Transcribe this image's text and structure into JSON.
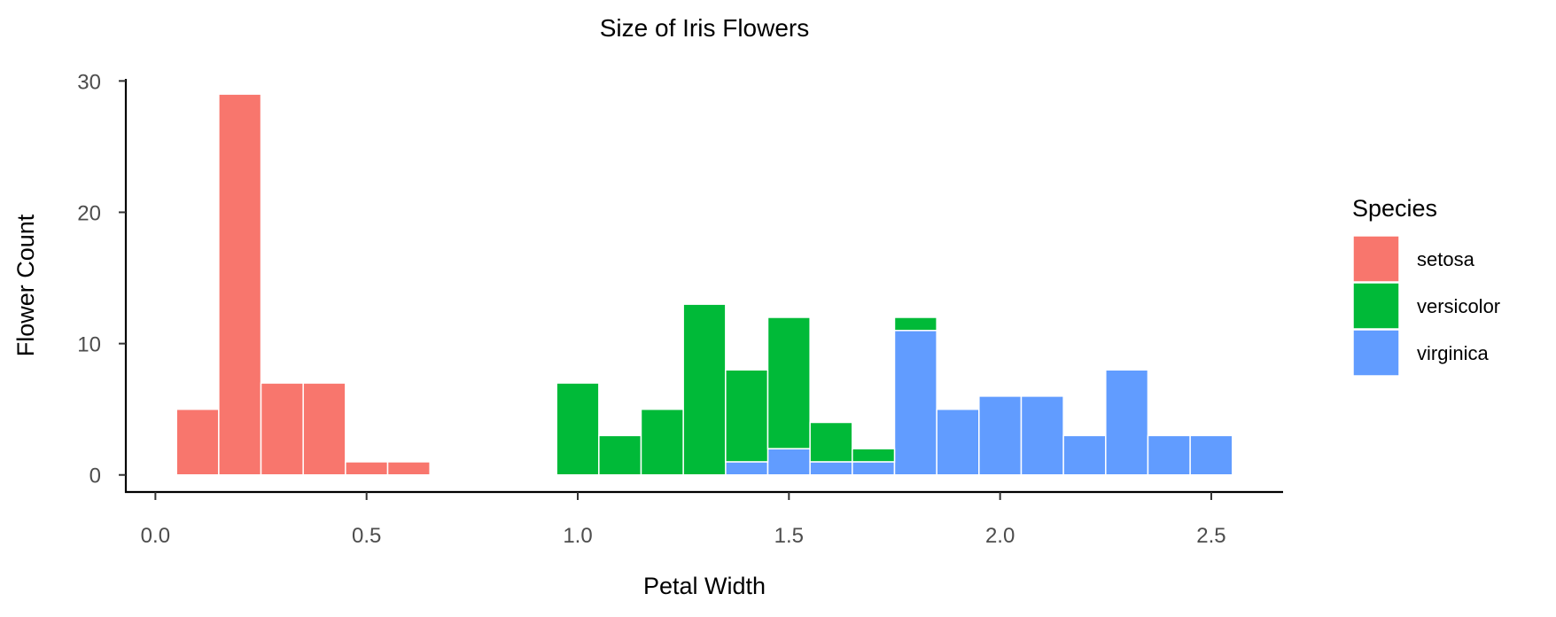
{
  "chart_data": {
    "type": "bar",
    "title": "Size of Iris Flowers",
    "xlabel": "Petal Width",
    "ylabel": "Flower Count",
    "xlim": [
      -0.07,
      2.67
    ],
    "ylim": [
      -1.3,
      30.9
    ],
    "x_ticks": [
      "0.0",
      "0.5",
      "1.0",
      "1.5",
      "2.0",
      "2.5"
    ],
    "y_ticks": [
      "0",
      "10",
      "20",
      "30"
    ],
    "bin_width": 0.1,
    "stacked": true,
    "grid": false,
    "legend": {
      "title": "Species",
      "position": "right"
    },
    "series": [
      {
        "name": "setosa",
        "color": "#F8766D",
        "bins": [
          {
            "x": 0.1,
            "count": 5
          },
          {
            "x": 0.2,
            "count": 29
          },
          {
            "x": 0.3,
            "count": 7
          },
          {
            "x": 0.4,
            "count": 7
          },
          {
            "x": 0.5,
            "count": 1
          },
          {
            "x": 0.6,
            "count": 1
          }
        ]
      },
      {
        "name": "versicolor",
        "color": "#00BA38",
        "bins": [
          {
            "x": 1.0,
            "count": 7
          },
          {
            "x": 1.1,
            "count": 3
          },
          {
            "x": 1.2,
            "count": 5
          },
          {
            "x": 1.3,
            "count": 13
          },
          {
            "x": 1.4,
            "count": 7
          },
          {
            "x": 1.5,
            "count": 10
          },
          {
            "x": 1.6,
            "count": 3
          },
          {
            "x": 1.7,
            "count": 1
          },
          {
            "x": 1.8,
            "count": 1
          }
        ]
      },
      {
        "name": "virginica",
        "color": "#619CFF",
        "bins": [
          {
            "x": 1.4,
            "count": 1
          },
          {
            "x": 1.5,
            "count": 2
          },
          {
            "x": 1.6,
            "count": 1
          },
          {
            "x": 1.7,
            "count": 1
          },
          {
            "x": 1.8,
            "count": 11
          },
          {
            "x": 1.9,
            "count": 5
          },
          {
            "x": 2.0,
            "count": 6
          },
          {
            "x": 2.1,
            "count": 6
          },
          {
            "x": 2.2,
            "count": 3
          },
          {
            "x": 2.3,
            "count": 8
          },
          {
            "x": 2.4,
            "count": 3
          },
          {
            "x": 2.5,
            "count": 3
          }
        ]
      }
    ]
  }
}
